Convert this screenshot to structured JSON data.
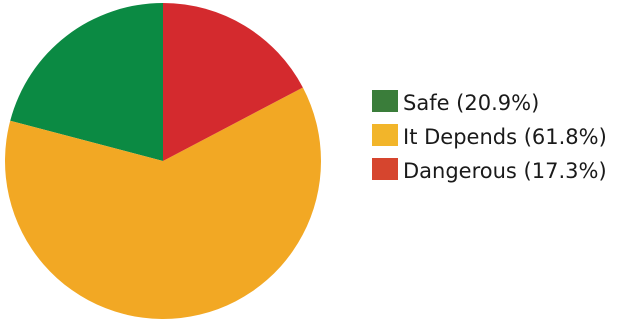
{
  "chart_data": {
    "type": "pie",
    "title": "",
    "start_angle_deg": -90,
    "direction": "counterclockwise",
    "slices": [
      {
        "label": "Safe (20.9%)",
        "value": 20.9,
        "color": "#0b8a43"
      },
      {
        "label": "It Depends (61.8%)",
        "value": 61.8,
        "color": "#f2a824"
      },
      {
        "label": "Dangerous (17.3%)",
        "value": 17.3,
        "color": "#d42a2e"
      }
    ],
    "legend": {
      "position": "right",
      "items": [
        {
          "label": "Safe (20.9%)",
          "color": "#3a7d3a"
        },
        {
          "label": "It Depends (61.8%)",
          "color": "#f2b52a"
        },
        {
          "label": "Dangerous (17.3%)",
          "color": "#d6452e"
        }
      ]
    }
  }
}
